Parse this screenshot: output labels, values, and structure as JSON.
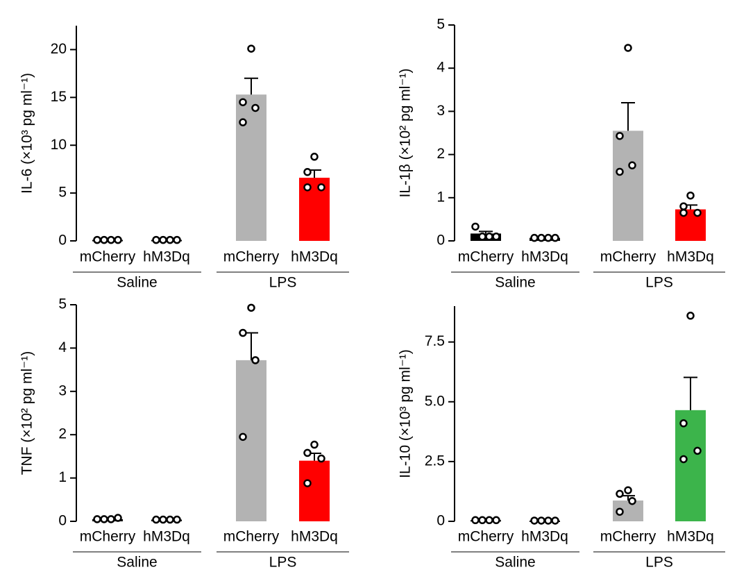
{
  "chart_data": [
    {
      "type": "bar",
      "ylabel": "IL-6 (×10³ pg ml⁻¹)",
      "categories": [
        "mCherry",
        "hM3Dq",
        "mCherry",
        "hM3Dq"
      ],
      "groups": [
        "Saline",
        "LPS"
      ],
      "values": [
        0.1,
        0.1,
        15.3,
        6.6
      ],
      "errors": [
        0.02,
        0.02,
        1.7,
        0.8
      ],
      "points": [
        [
          0.1,
          0.1,
          0.1,
          0.1
        ],
        [
          0.1,
          0.1,
          0.1,
          0.1
        ],
        [
          20.1,
          14.5,
          13.9,
          12.4
        ],
        [
          8.8,
          7.2,
          5.6,
          5.6
        ]
      ],
      "colors": [
        "#000000",
        "#000000",
        "#b3b3b3",
        "#ff0000"
      ],
      "ylim": [
        0,
        22.5
      ],
      "yticks": [
        0,
        5,
        10,
        15,
        20
      ]
    },
    {
      "type": "bar",
      "ylabel": "IL-1β (×10² pg ml⁻¹)",
      "categories": [
        "mCherry",
        "hM3Dq",
        "mCherry",
        "hM3Dq"
      ],
      "groups": [
        "Saline",
        "LPS"
      ],
      "values": [
        0.17,
        0.07,
        2.55,
        0.73
      ],
      "errors": [
        0.05,
        0.01,
        0.65,
        0.1
      ],
      "points": [
        [
          0.33,
          0.1,
          0.1,
          0.1
        ],
        [
          0.07,
          0.07,
          0.07,
          0.07
        ],
        [
          4.47,
          2.43,
          1.75,
          1.6
        ],
        [
          1.05,
          0.8,
          0.65,
          0.65
        ]
      ],
      "colors": [
        "#000000",
        "#000000",
        "#b3b3b3",
        "#ff0000"
      ],
      "ylim": [
        0,
        5
      ],
      "yticks": [
        0,
        1,
        2,
        3,
        4,
        5
      ]
    },
    {
      "type": "bar",
      "ylabel": "TNF (×10² pg ml⁻¹)",
      "categories": [
        "mCherry",
        "hM3Dq",
        "mCherry",
        "hM3Dq"
      ],
      "groups": [
        "Saline",
        "LPS"
      ],
      "values": [
        0.05,
        0.04,
        3.72,
        1.4
      ],
      "errors": [
        0.02,
        0.01,
        0.63,
        0.17
      ],
      "points": [
        [
          0.05,
          0.05,
          0.05,
          0.08
        ],
        [
          0.04,
          0.04,
          0.04,
          0.04
        ],
        [
          4.93,
          4.35,
          3.72,
          1.95
        ],
        [
          1.77,
          1.58,
          1.45,
          0.88
        ]
      ],
      "colors": [
        "#000000",
        "#000000",
        "#b3b3b3",
        "#ff0000"
      ],
      "ylim": [
        0,
        5
      ],
      "yticks": [
        0,
        1,
        2,
        3,
        4,
        5
      ]
    },
    {
      "type": "bar",
      "ylabel": "IL-10 (×10³ pg ml⁻¹)",
      "categories": [
        "mCherry",
        "hM3Dq",
        "mCherry",
        "hM3Dq"
      ],
      "groups": [
        "Saline",
        "LPS"
      ],
      "values": [
        0.05,
        0.03,
        0.87,
        4.65
      ],
      "errors": [
        0.01,
        0.01,
        0.2,
        1.37
      ],
      "points": [
        [
          0.05,
          0.05,
          0.05,
          0.05
        ],
        [
          0.03,
          0.03,
          0.03,
          0.03
        ],
        [
          1.3,
          1.15,
          0.85,
          0.4
        ],
        [
          8.6,
          4.1,
          2.95,
          2.6
        ]
      ],
      "colors": [
        "#000000",
        "#000000",
        "#b3b3b3",
        "#3cb44b"
      ],
      "ylim": [
        0,
        9
      ],
      "yticks": [
        0,
        2.5,
        {
          "value": 5,
          "label": "5.0"
        },
        7.5
      ]
    }
  ]
}
